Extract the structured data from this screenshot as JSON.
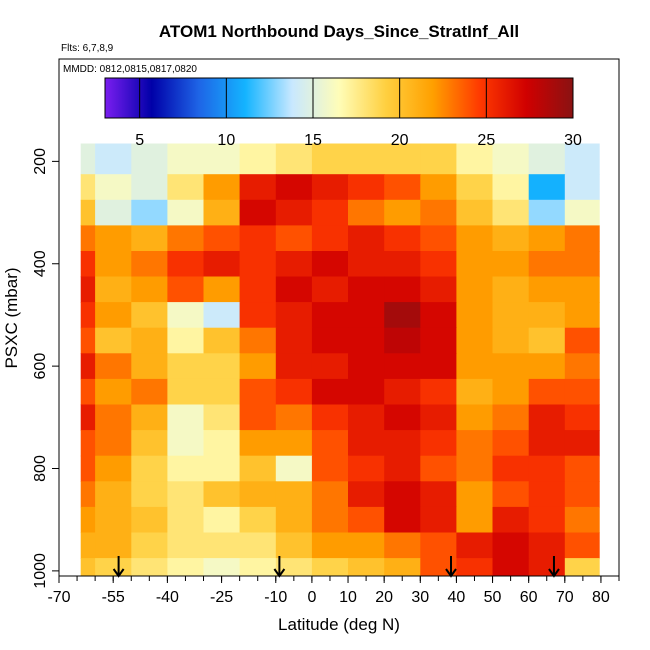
{
  "chart_data": {
    "type": "heatmap",
    "title": "ATOM1 Northbound Days_Since_StratInf_All",
    "flights_note": "Flts: 6,7,8,9",
    "dates_note": "MMDD: 0812,0815,0817,0820",
    "xlabel": "Latitude (deg N)",
    "ylabel": "PSXC (mbar)",
    "xlim": [
      -70,
      85
    ],
    "ylim": [
      1010,
      0
    ],
    "x_ticks": [
      -70,
      -55,
      -40,
      -25,
      -10,
      0,
      10,
      20,
      30,
      40,
      50,
      60,
      70,
      80
    ],
    "x_minor_step": 5,
    "y_ticks": [
      200,
      400,
      600,
      800,
      1000
    ],
    "colorbar": {
      "min": 3,
      "max": 30,
      "ticks": [
        5,
        10,
        15,
        20,
        25,
        30
      ],
      "stops": [
        "#7a1ef0",
        "#0000a8",
        "#1e64e6",
        "#14b4ff",
        "#c8e8ff",
        "#fffdb8",
        "#ffd040",
        "#ffa000",
        "#ff3a00",
        "#d00000",
        "#8a1212"
      ]
    },
    "lat_bins": [
      -65,
      -55,
      -45,
      -35,
      -25,
      -15,
      -5,
      5,
      15,
      25,
      35,
      45,
      55,
      65,
      75
    ],
    "pressure_levels": [
      200,
      250,
      300,
      350,
      400,
      450,
      500,
      550,
      600,
      650,
      700,
      750,
      800,
      850,
      900,
      950,
      1000
    ],
    "values": [
      [
        15,
        14,
        15,
        16,
        16,
        17,
        18,
        19,
        19,
        19,
        19,
        17,
        16,
        15,
        14
      ],
      [
        18,
        16,
        15,
        18,
        22,
        26,
        27,
        26,
        25,
        24,
        22,
        19,
        17,
        11,
        14
      ],
      [
        20,
        15,
        13,
        16,
        21,
        27,
        26,
        25,
        23,
        22,
        23,
        20,
        18,
        13,
        16
      ],
      [
        23,
        22,
        21,
        23,
        24,
        25,
        24,
        25,
        26,
        25,
        24,
        22,
        21,
        22,
        23
      ],
      [
        25,
        22,
        23,
        25,
        26,
        25,
        26,
        27,
        26,
        26,
        25,
        22,
        22,
        23,
        23
      ],
      [
        26,
        21,
        22,
        24,
        22,
        25,
        27,
        26,
        27,
        27,
        26,
        22,
        21,
        22,
        22
      ],
      [
        25,
        22,
        20,
        16,
        14,
        25,
        26,
        27,
        27,
        29,
        27,
        22,
        21,
        21,
        22
      ],
      [
        24,
        20,
        21,
        17,
        20,
        23,
        26,
        27,
        27,
        28,
        27,
        22,
        21,
        20,
        24
      ],
      [
        26,
        23,
        21,
        19,
        19,
        22,
        26,
        26,
        27,
        27,
        27,
        22,
        22,
        22,
        23
      ],
      [
        24,
        22,
        23,
        19,
        19,
        24,
        25,
        27,
        27,
        26,
        25,
        21,
        22,
        24,
        24
      ],
      [
        26,
        23,
        21,
        16,
        18,
        24,
        23,
        25,
        26,
        27,
        26,
        22,
        23,
        26,
        25
      ],
      [
        24,
        23,
        20,
        16,
        17,
        22,
        22,
        24,
        26,
        26,
        25,
        23,
        24,
        26,
        26
      ],
      [
        24,
        22,
        19,
        17,
        17,
        20,
        16,
        24,
        25,
        26,
        24,
        23,
        25,
        25,
        24
      ],
      [
        23,
        21,
        19,
        18,
        20,
        21,
        21,
        23,
        26,
        27,
        26,
        22,
        24,
        25,
        24
      ],
      [
        22,
        21,
        20,
        18,
        17,
        19,
        21,
        23,
        24,
        27,
        26,
        22,
        26,
        25,
        23
      ],
      [
        21,
        21,
        19,
        18,
        18,
        18,
        20,
        22,
        22,
        23,
        24,
        26,
        27,
        26,
        24
      ],
      [
        20,
        19,
        18,
        17,
        16,
        17,
        18,
        19,
        20,
        21,
        24,
        25,
        27,
        26,
        19
      ]
    ],
    "arrow_latitudes": [
      -53.5,
      -9,
      38.5,
      67
    ]
  }
}
